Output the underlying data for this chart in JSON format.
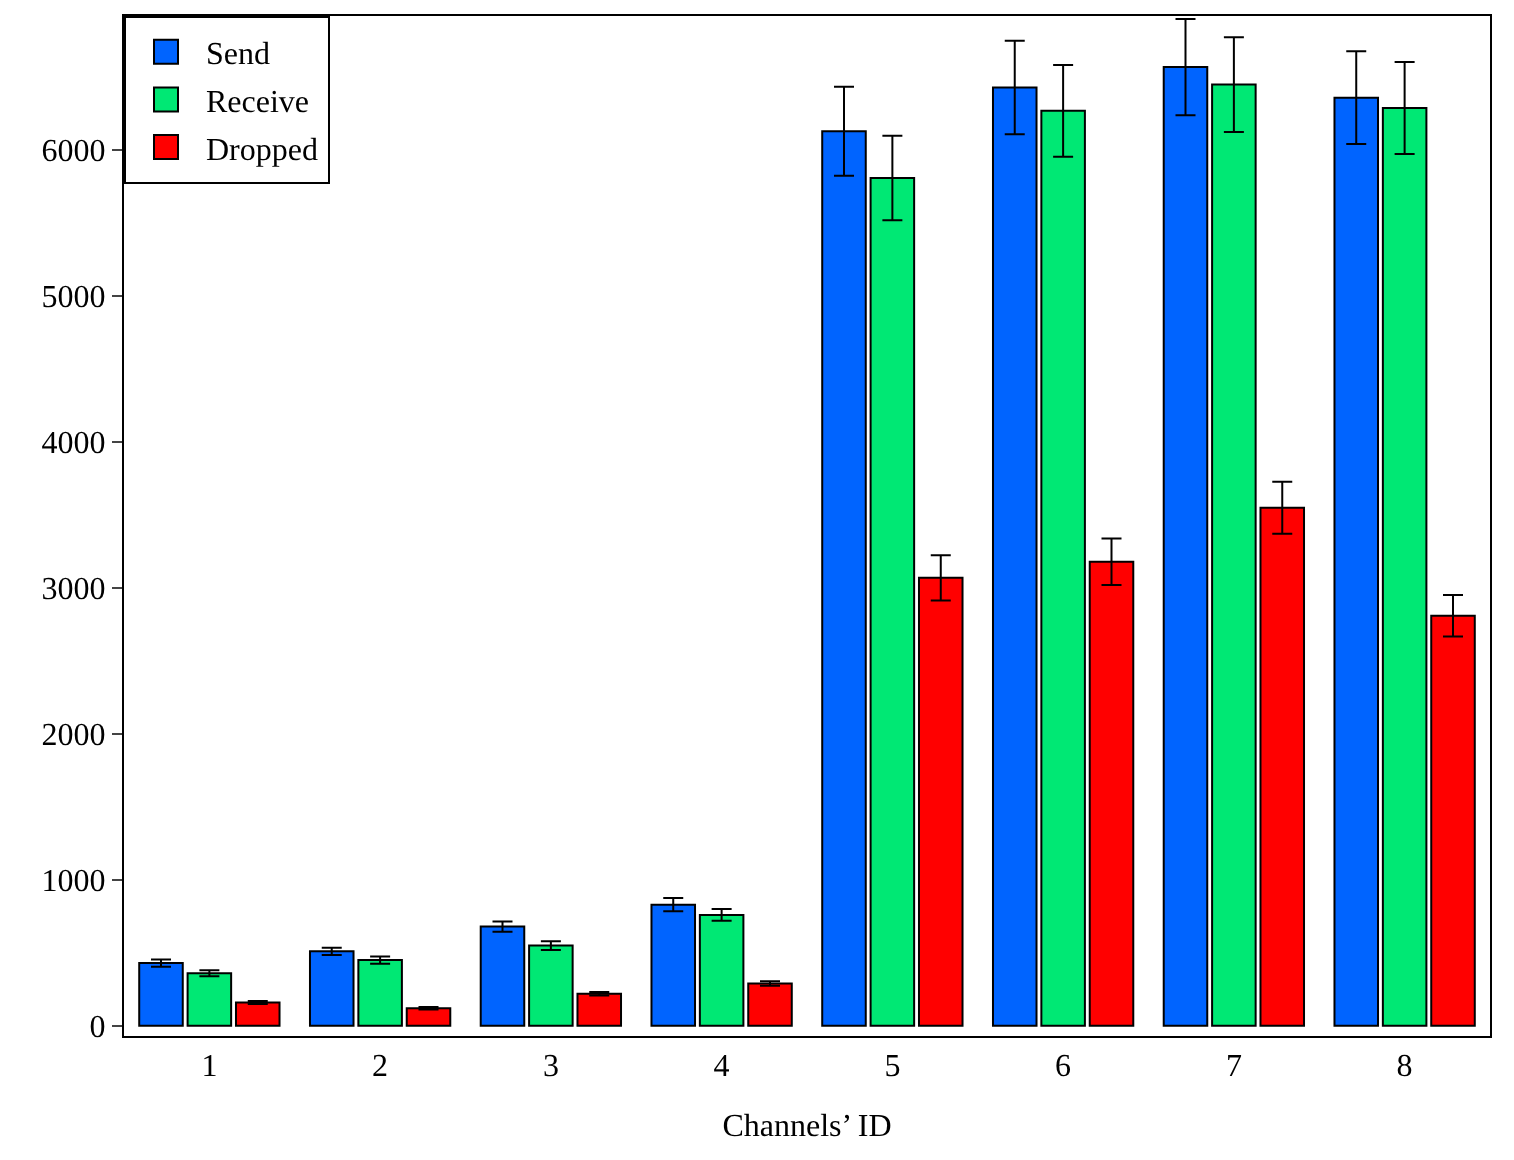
{
  "chart_data": {
    "type": "bar",
    "xlabel": "Channels’ ID",
    "categories": [
      "1",
      "2",
      "3",
      "4",
      "5",
      "6",
      "7",
      "8"
    ],
    "series": [
      {
        "name": "Send",
        "color": "#0064ff",
        "values": [
          430,
          510,
          680,
          830,
          6130,
          6430,
          6570,
          6360
        ],
        "errors": [
          25,
          25,
          35,
          45,
          305,
          320,
          330,
          318
        ]
      },
      {
        "name": "Receive",
        "color": "#00e874",
        "values": [
          360,
          450,
          550,
          760,
          5810,
          6270,
          6450,
          6290
        ],
        "errors": [
          20,
          25,
          30,
          40,
          290,
          315,
          325,
          315
        ]
      },
      {
        "name": "Dropped",
        "color": "#ff0000",
        "values": [
          160,
          120,
          220,
          290,
          3070,
          3180,
          3550,
          2810
        ],
        "errors": [
          10,
          8,
          12,
          15,
          155,
          160,
          178,
          143
        ]
      }
    ],
    "ylim": [
      -70,
      6920
    ],
    "yticks": [
      0,
      1000,
      2000,
      3000,
      4000,
      5000,
      6000
    ],
    "grid": false,
    "legend": "top left"
  }
}
